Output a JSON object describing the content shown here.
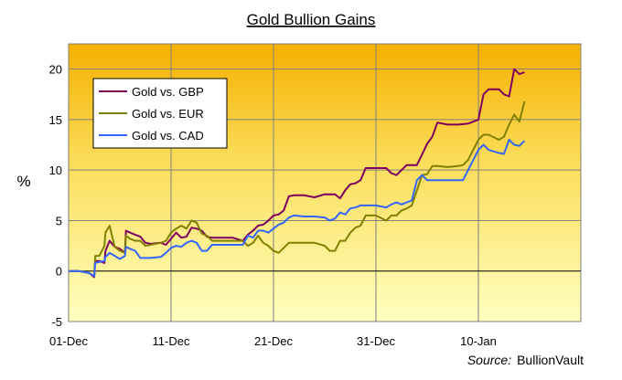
{
  "chart_data": {
    "type": "line",
    "title": "Gold Bullion Gains",
    "ylabel": "%",
    "xlabel": "",
    "source_label": "Source:",
    "source_value": "BullionVault",
    "ylim": [
      -5,
      22.5
    ],
    "xlim": [
      0,
      50
    ],
    "x_ticks": [
      {
        "label": "01-Dec",
        "x": 0
      },
      {
        "label": "11-Dec",
        "x": 10
      },
      {
        "label": "21-Dec",
        "x": 20
      },
      {
        "label": "31-Dec",
        "x": 30
      },
      {
        "label": "10-Jan",
        "x": 40
      }
    ],
    "y_ticks": [
      -5,
      0,
      5,
      10,
      15,
      20
    ],
    "grid": true,
    "legend_position": "top-left",
    "series": [
      {
        "name": "Gold vs. GBP",
        "color": "#800060",
        "points": [
          [
            0,
            0
          ],
          [
            1,
            0
          ],
          [
            2,
            -0.2
          ],
          [
            2.5,
            -0.6
          ],
          [
            2.6,
            1
          ],
          [
            3,
            1
          ],
          [
            3.5,
            0.8
          ],
          [
            3.6,
            2
          ],
          [
            4,
            3
          ],
          [
            4.5,
            2.4
          ],
          [
            5,
            2.2
          ],
          [
            5.5,
            1.8
          ],
          [
            5.6,
            4
          ],
          [
            6,
            3.8
          ],
          [
            6.5,
            3.6
          ],
          [
            7,
            3.4
          ],
          [
            7.5,
            2.8
          ],
          [
            8,
            2.7
          ],
          [
            9,
            2.8
          ],
          [
            9.5,
            2.6
          ],
          [
            10,
            3.2
          ],
          [
            10.5,
            3.8
          ],
          [
            11,
            3.3
          ],
          [
            11.5,
            3.4
          ],
          [
            12,
            4.3
          ],
          [
            12.5,
            4.2
          ],
          [
            13,
            4
          ],
          [
            13.5,
            3.4
          ],
          [
            14,
            3.3
          ],
          [
            15,
            3.3
          ],
          [
            16,
            3.3
          ],
          [
            17,
            3
          ],
          [
            17.5,
            3.6
          ],
          [
            18,
            4
          ],
          [
            18.5,
            4.5
          ],
          [
            19,
            4.6
          ],
          [
            19.5,
            5
          ],
          [
            20,
            5.5
          ],
          [
            20.5,
            5.6
          ],
          [
            21,
            6
          ],
          [
            21.5,
            7.4
          ],
          [
            22,
            7.5
          ],
          [
            23,
            7.5
          ],
          [
            24,
            7.3
          ],
          [
            25,
            7.6
          ],
          [
            26,
            7.6
          ],
          [
            26.5,
            7.2
          ],
          [
            27,
            8
          ],
          [
            27.5,
            8.6
          ],
          [
            28,
            8.7
          ],
          [
            28.5,
            9
          ],
          [
            29,
            10.2
          ],
          [
            30,
            10.2
          ],
          [
            31,
            10.2
          ],
          [
            31.5,
            9.7
          ],
          [
            32,
            9.5
          ],
          [
            33,
            10.5
          ],
          [
            34,
            10.5
          ],
          [
            35,
            12.6
          ],
          [
            35.5,
            13.3
          ],
          [
            36,
            14.7
          ],
          [
            37,
            14.5
          ],
          [
            38,
            14.5
          ],
          [
            39,
            14.6
          ],
          [
            40,
            15
          ],
          [
            40.5,
            17.5
          ],
          [
            41,
            18
          ],
          [
            42,
            18
          ],
          [
            42.5,
            17.5
          ],
          [
            43,
            17.3
          ],
          [
            43.5,
            20
          ],
          [
            44,
            19.5
          ],
          [
            44.5,
            19.7
          ]
        ]
      },
      {
        "name": "Gold vs. EUR",
        "color": "#808000",
        "points": [
          [
            0,
            0
          ],
          [
            1,
            0
          ],
          [
            2,
            -0.2
          ],
          [
            2.5,
            -0.5
          ],
          [
            2.6,
            1.5
          ],
          [
            3,
            1.5
          ],
          [
            3.5,
            2.5
          ],
          [
            3.6,
            3.8
          ],
          [
            4,
            4.5
          ],
          [
            4.5,
            2.4
          ],
          [
            5,
            2
          ],
          [
            5.5,
            1.8
          ],
          [
            5.6,
            3.5
          ],
          [
            6,
            3.2
          ],
          [
            6.5,
            3
          ],
          [
            7,
            3
          ],
          [
            7.5,
            2.5
          ],
          [
            8,
            2.6
          ],
          [
            9,
            2.8
          ],
          [
            9.5,
            3
          ],
          [
            10,
            3.8
          ],
          [
            10.5,
            4.2
          ],
          [
            11,
            4.5
          ],
          [
            11.5,
            4.2
          ],
          [
            12,
            5
          ],
          [
            12.5,
            4.8
          ],
          [
            13,
            3.7
          ],
          [
            13.5,
            3.5
          ],
          [
            14,
            3
          ],
          [
            15,
            3
          ],
          [
            16,
            3
          ],
          [
            17,
            3
          ],
          [
            17.5,
            2.5
          ],
          [
            18,
            2.8
          ],
          [
            18.5,
            3.5
          ],
          [
            19,
            2.8
          ],
          [
            19.5,
            2.5
          ],
          [
            20,
            2
          ],
          [
            20.5,
            1.8
          ],
          [
            21,
            2.3
          ],
          [
            21.5,
            2.8
          ],
          [
            22,
            2.8
          ],
          [
            23,
            2.8
          ],
          [
            24,
            2.8
          ],
          [
            25,
            2.5
          ],
          [
            25.5,
            2
          ],
          [
            26,
            2
          ],
          [
            26.5,
            3
          ],
          [
            27,
            3
          ],
          [
            27.5,
            3.8
          ],
          [
            28,
            4.3
          ],
          [
            28.5,
            4.5
          ],
          [
            29,
            5.5
          ],
          [
            30,
            5.5
          ],
          [
            31,
            5
          ],
          [
            31.5,
            5.5
          ],
          [
            32,
            5.5
          ],
          [
            32.5,
            6
          ],
          [
            33,
            6.2
          ],
          [
            33.5,
            6.5
          ],
          [
            34,
            8
          ],
          [
            34.5,
            9.5
          ],
          [
            35,
            9.6
          ],
          [
            35.5,
            10.4
          ],
          [
            36,
            10.4
          ],
          [
            37,
            10.3
          ],
          [
            38,
            10.4
          ],
          [
            38.5,
            10.5
          ],
          [
            39,
            11
          ],
          [
            40,
            13
          ],
          [
            40.5,
            13.5
          ],
          [
            41,
            13.5
          ],
          [
            42,
            13
          ],
          [
            42.5,
            13.3
          ],
          [
            43,
            14.5
          ],
          [
            43.5,
            15.5
          ],
          [
            44,
            14.8
          ],
          [
            44.5,
            16.8
          ]
        ]
      },
      {
        "name": "Gold vs. CAD",
        "color": "#3366FF",
        "points": [
          [
            0,
            0
          ],
          [
            1,
            0
          ],
          [
            2,
            -0.2
          ],
          [
            2.5,
            -0.5
          ],
          [
            2.6,
            0.8
          ],
          [
            3,
            0.9
          ],
          [
            3.5,
            1
          ],
          [
            3.6,
            1.4
          ],
          [
            4,
            1.8
          ],
          [
            4.5,
            1.5
          ],
          [
            5,
            1.2
          ],
          [
            5.5,
            1.5
          ],
          [
            5.6,
            2.4
          ],
          [
            6,
            2.2
          ],
          [
            6.5,
            2
          ],
          [
            7,
            1.3
          ],
          [
            8,
            1.3
          ],
          [
            9,
            1.4
          ],
          [
            9.5,
            1.8
          ],
          [
            10,
            2.3
          ],
          [
            10.5,
            2.5
          ],
          [
            11,
            2.4
          ],
          [
            11.5,
            2.8
          ],
          [
            12,
            3
          ],
          [
            12.5,
            2.8
          ],
          [
            13,
            2
          ],
          [
            13.5,
            2
          ],
          [
            14,
            2.6
          ],
          [
            15,
            2.6
          ],
          [
            16,
            2.6
          ],
          [
            17,
            2.6
          ],
          [
            17.5,
            3.5
          ],
          [
            18,
            3.3
          ],
          [
            18.5,
            4
          ],
          [
            19,
            4
          ],
          [
            19.5,
            3.8
          ],
          [
            20,
            4.2
          ],
          [
            20.5,
            4.6
          ],
          [
            21,
            4.8
          ],
          [
            21.5,
            5.3
          ],
          [
            22,
            5.5
          ],
          [
            23,
            5.4
          ],
          [
            24,
            5.4
          ],
          [
            25,
            5.3
          ],
          [
            25.5,
            5
          ],
          [
            26,
            5.2
          ],
          [
            26.5,
            5.8
          ],
          [
            27,
            5.6
          ],
          [
            27.5,
            6.2
          ],
          [
            28,
            6.3
          ],
          [
            28.5,
            6.5
          ],
          [
            29,
            6.5
          ],
          [
            30,
            6.5
          ],
          [
            31,
            6.3
          ],
          [
            31.5,
            6.6
          ],
          [
            32,
            6.8
          ],
          [
            32.5,
            6.6
          ],
          [
            33,
            6.8
          ],
          [
            33.5,
            7
          ],
          [
            34,
            9
          ],
          [
            34.5,
            9.5
          ],
          [
            35,
            9
          ],
          [
            35.5,
            9
          ],
          [
            36,
            9
          ],
          [
            37,
            9
          ],
          [
            38,
            9
          ],
          [
            38.5,
            9
          ],
          [
            39,
            10
          ],
          [
            40,
            12
          ],
          [
            40.5,
            12.5
          ],
          [
            41,
            12
          ],
          [
            42,
            11.7
          ],
          [
            42.5,
            11.6
          ],
          [
            43,
            13
          ],
          [
            43.5,
            12.5
          ],
          [
            44,
            12.4
          ],
          [
            44.5,
            12.9
          ]
        ]
      }
    ]
  }
}
